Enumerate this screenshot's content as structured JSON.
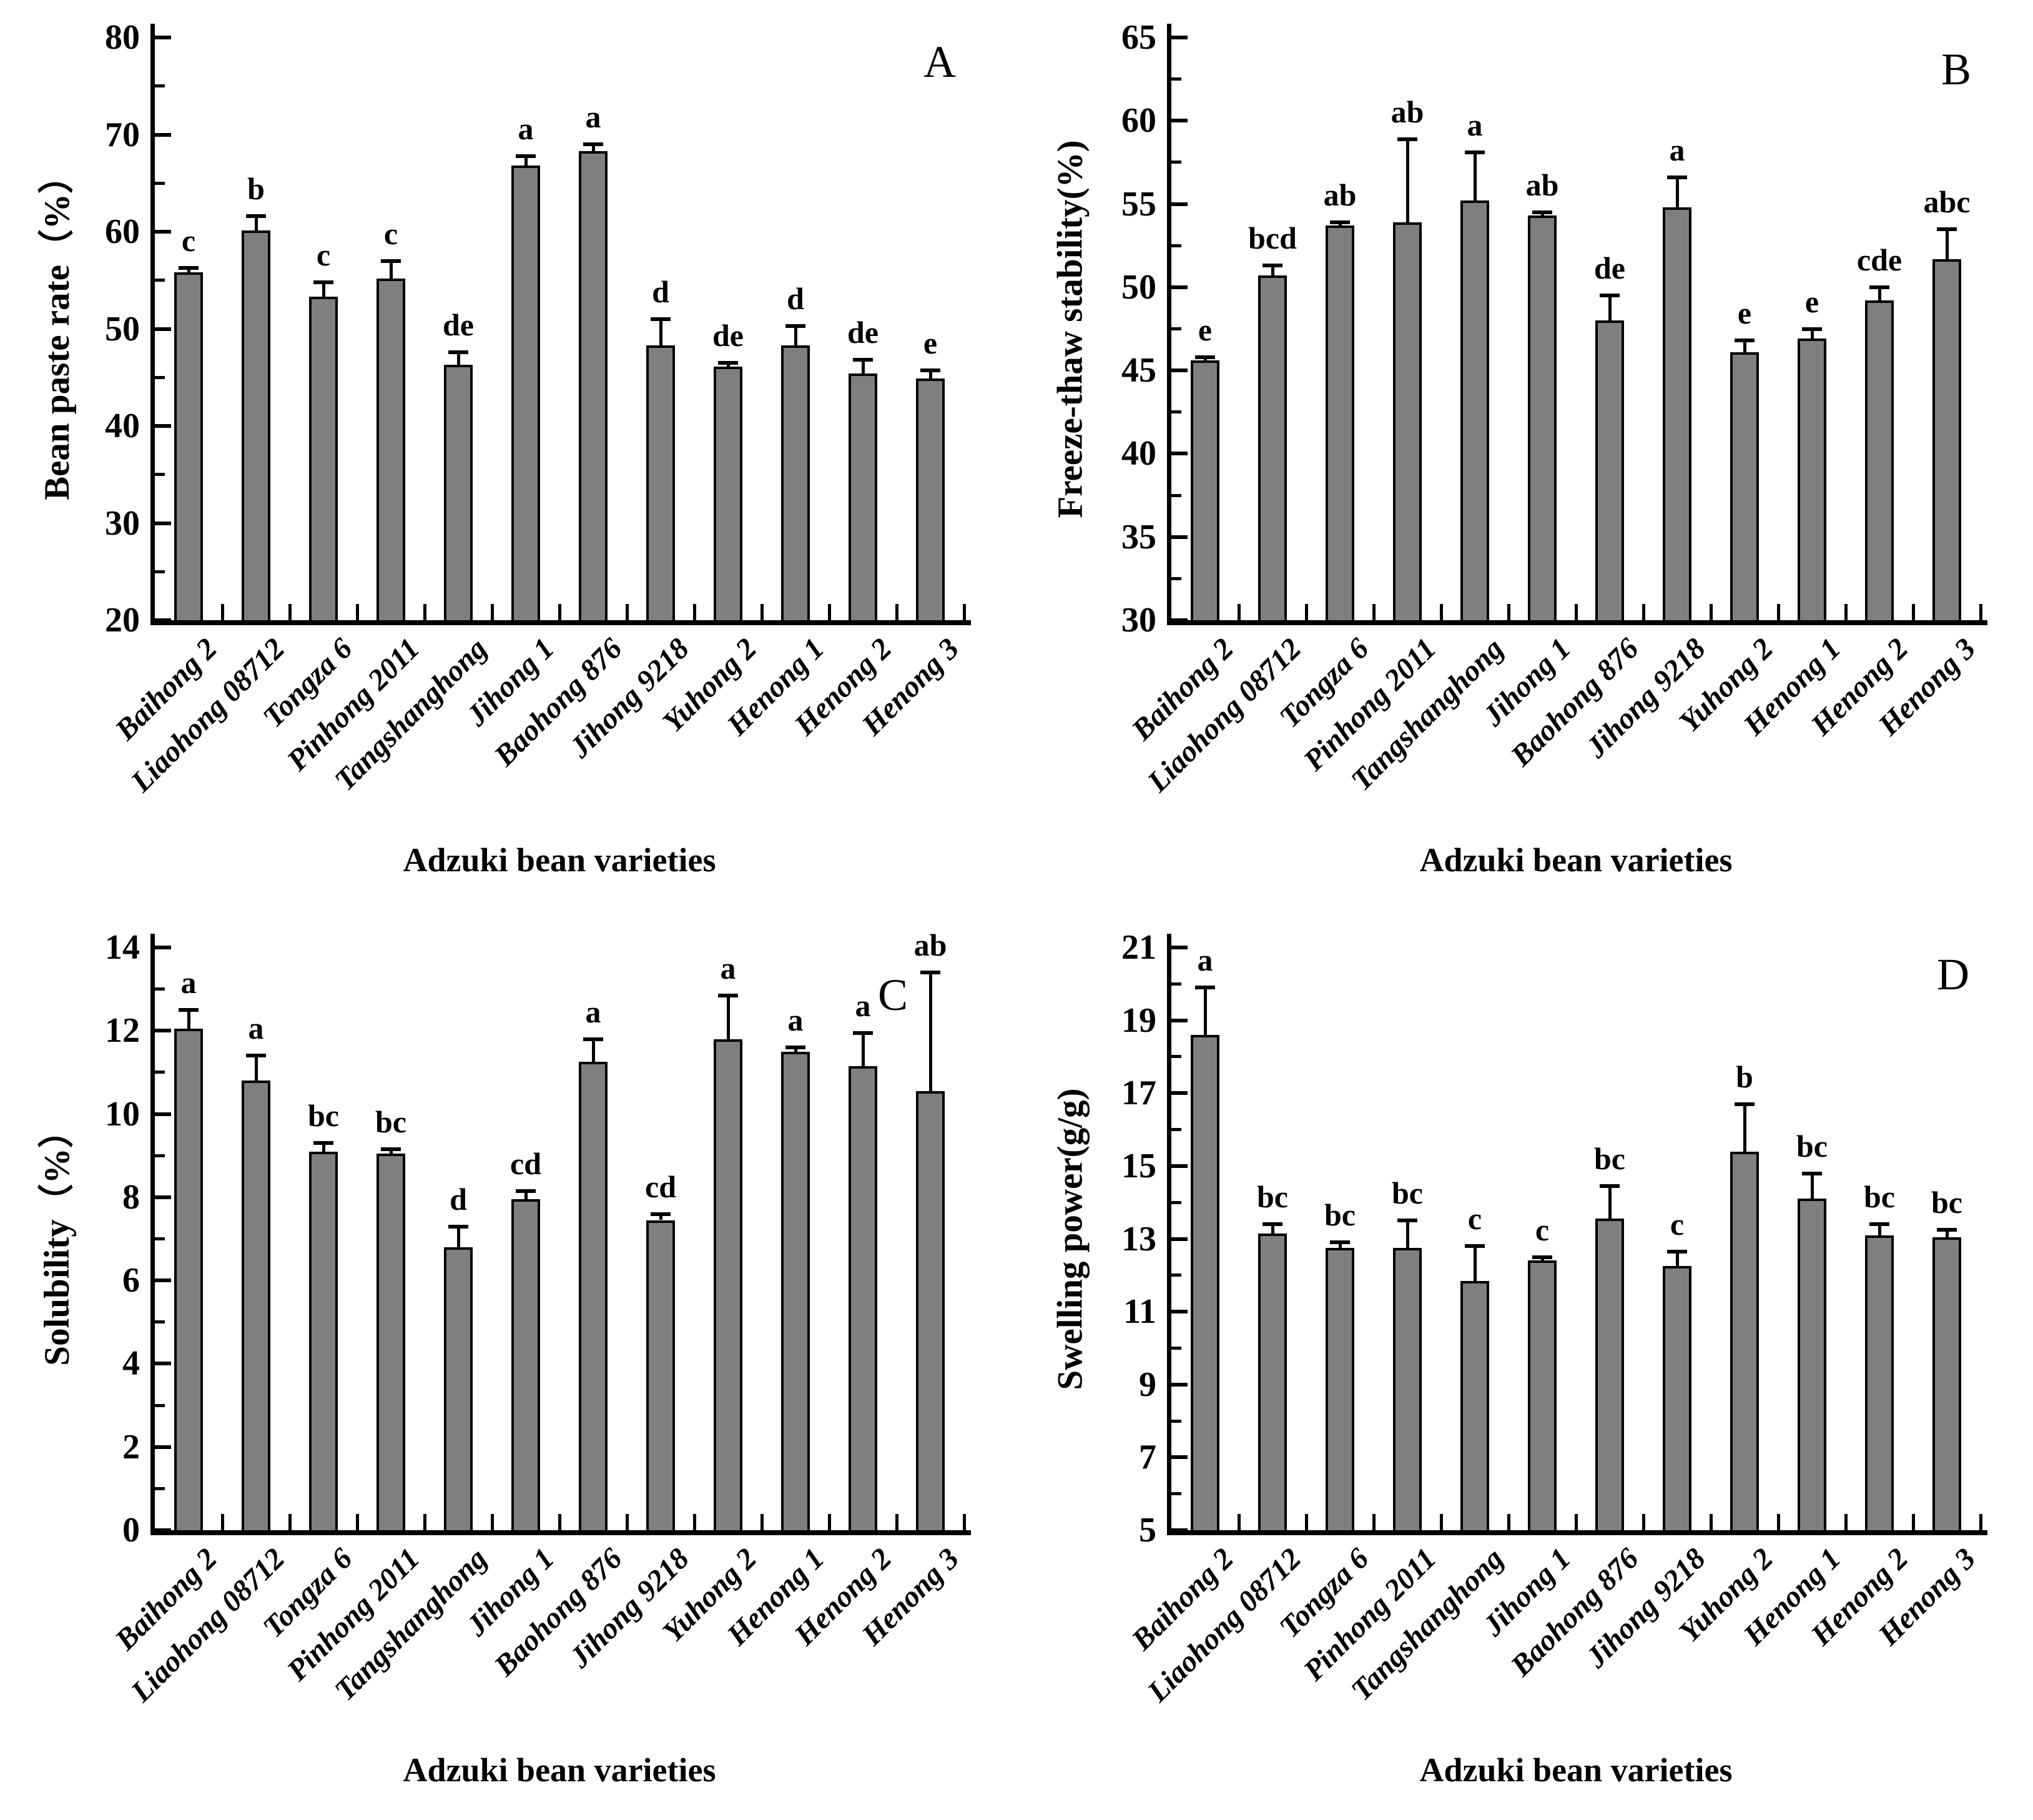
{
  "figure": {
    "x_axis_title": "Adzuki bean varieties",
    "bar_fill_color": "#7f7f7f",
    "bar_border_color": "#000000",
    "background_color": "#ffffff"
  },
  "chart_data": [
    {
      "type": "bar",
      "panel_label": "A",
      "ylabel": "Bean paste rate（%）",
      "xlabel": "Adzuki bean varieties",
      "ylim": [
        20,
        80
      ],
      "ytick_step": 10,
      "grid": false,
      "legend": "none",
      "categories": [
        "Baihong 2",
        "Liaohong 08712",
        "Tongza 6",
        "Pinhong 2011",
        "Tangshanghong",
        "Jihong 1",
        "Baohong 876",
        "Jihong 9218",
        "Yuhong 2",
        "Henong 1",
        "Henong 2",
        "Henong 3"
      ],
      "values": [
        55.8,
        60.1,
        53.3,
        55.2,
        46.3,
        66.8,
        68.3,
        48.3,
        46.1,
        48.3,
        45.4,
        44.9
      ],
      "errors": [
        0.5,
        1.5,
        1.5,
        1.8,
        1.3,
        1.0,
        0.7,
        2.7,
        0.4,
        2.0,
        1.4,
        0.8
      ],
      "sig_letters": [
        "c",
        "b",
        "c",
        "c",
        "de",
        "a",
        "a",
        "d",
        "de",
        "d",
        "de",
        "e"
      ]
    },
    {
      "type": "bar",
      "panel_label": "B",
      "ylabel": "Freeze-thaw stability(%)",
      "xlabel": "Adzuki bean varieties",
      "ylim": [
        30,
        65
      ],
      "ytick_step": 5,
      "grid": false,
      "legend": "none",
      "categories": [
        "Baihong 2",
        "Liaohong 08712",
        "Tongza 6",
        "Pinhong 2011",
        "Tangshanghong",
        "Jihong 1",
        "Baohong 876",
        "Jihong 9218",
        "Yuhong 2",
        "Henong 1",
        "Henong 2",
        "Henong 3"
      ],
      "values": [
        45.6,
        50.7,
        53.7,
        53.9,
        55.2,
        54.3,
        48.0,
        54.8,
        46.1,
        46.9,
        49.2,
        51.7
      ],
      "errors": [
        0.2,
        0.6,
        0.2,
        5.0,
        2.9,
        0.2,
        1.5,
        1.8,
        0.7,
        0.6,
        0.8,
        1.8
      ],
      "sig_letters": [
        "e",
        "bcd",
        "ab",
        "ab",
        "a",
        "ab",
        "de",
        "a",
        "e",
        "e",
        "cde",
        "abc"
      ]
    },
    {
      "type": "bar",
      "panel_label": "C",
      "ylabel": "Solubility（%）",
      "xlabel": "Adzuki bean varieties",
      "ylim": [
        0,
        14
      ],
      "ytick_step": 2,
      "grid": false,
      "legend": "none",
      "categories": [
        "Baihong 2",
        "Liaohong 08712",
        "Tongza 6",
        "Pinhong 2011",
        "Tangshanghong",
        "Jihong 1",
        "Baohong 876",
        "Jihong 9218",
        "Yuhong 2",
        "Henong 1",
        "Henong 2",
        "Henong 3"
      ],
      "values": [
        12.05,
        10.8,
        9.1,
        9.05,
        6.8,
        7.95,
        11.25,
        7.45,
        11.8,
        11.5,
        11.15,
        10.55
      ],
      "errors": [
        0.45,
        0.6,
        0.2,
        0.1,
        0.5,
        0.2,
        0.55,
        0.15,
        1.05,
        0.1,
        0.8,
        2.85
      ],
      "sig_letters": [
        "a",
        "a",
        "bc",
        "bc",
        "d",
        "cd",
        "a",
        "cd",
        "a",
        "a",
        "a",
        "ab"
      ]
    },
    {
      "type": "bar",
      "panel_label": "D",
      "ylabel": "Swelling power(g/g)",
      "xlabel": "Adzuki bean varieties",
      "ylim": [
        5,
        21
      ],
      "ytick_step": 2,
      "grid": false,
      "legend": "none",
      "categories": [
        "Baihong 2",
        "Liaohong 08712",
        "Tongza 6",
        "Pinhong 2011",
        "Tangshanghong",
        "Jihong 1",
        "Baohong 876",
        "Jihong 9218",
        "Yuhong 2",
        "Henong 1",
        "Henong 2",
        "Henong 3"
      ],
      "values": [
        18.6,
        13.15,
        12.75,
        12.75,
        11.85,
        12.4,
        13.55,
        12.25,
        15.4,
        14.1,
        13.1,
        13.05
      ],
      "errors": [
        1.3,
        0.25,
        0.15,
        0.75,
        0.95,
        0.1,
        0.9,
        0.4,
        1.3,
        0.7,
        0.3,
        0.2
      ],
      "sig_letters": [
        "a",
        "bc",
        "bc",
        "bc",
        "c",
        "c",
        "bc",
        "c",
        "b",
        "bc",
        "bc",
        "bc"
      ]
    }
  ]
}
